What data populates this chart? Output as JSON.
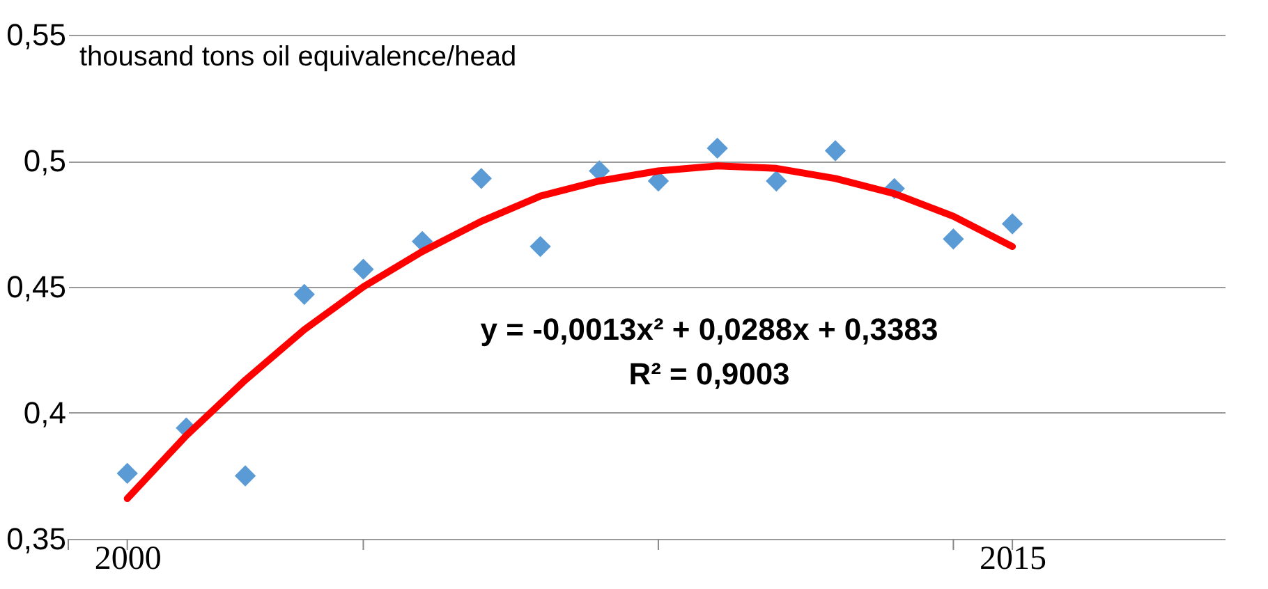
{
  "chart_data": {
    "type": "scatter",
    "ylabel": "thousand tons oil equivalence/head",
    "x": [
      2000,
      2001,
      2002,
      2003,
      2004,
      2005,
      2006,
      2007,
      2008,
      2009,
      2010,
      2011,
      2012,
      2013,
      2014,
      2015
    ],
    "series": [
      {
        "color": "#5b9bd5",
        "marker": "diamond",
        "values": [
          0.376,
          0.394,
          0.375,
          0.447,
          0.457,
          0.468,
          0.493,
          0.466,
          0.496,
          0.492,
          0.505,
          0.492,
          0.504,
          0.489,
          0.469,
          0.475
        ]
      },
      {
        "type": "line",
        "color": "#ff0000",
        "line_style": "solid",
        "x": [
          2000,
          2001,
          2002,
          2003,
          2004,
          2005,
          2006,
          2007,
          2008,
          2009,
          2010,
          2011,
          2012,
          2013,
          2014,
          2015
        ],
        "values": [
          0.366,
          0.391,
          0.413,
          0.433,
          0.45,
          0.464,
          0.476,
          0.486,
          0.492,
          0.496,
          0.498,
          0.497,
          0.493,
          0.487,
          0.478,
          0.466
        ]
      }
    ],
    "xlim": [
      1999,
      2018.6
    ],
    "xticks": [
      {
        "value": 1999,
        "label": null
      },
      2000,
      {
        "value": 2004,
        "label": null
      },
      {
        "value": 2009,
        "label": null
      },
      {
        "value": 2014,
        "label": null
      },
      2015
    ],
    "ylim": [
      0.35,
      0.55
    ],
    "yticks": [
      {
        "value": 0.35,
        "label": "0,35"
      },
      {
        "value": 0.4,
        "label": "0,4"
      },
      {
        "value": 0.45,
        "label": "0,45"
      },
      {
        "value": 0.5,
        "label": "0,5"
      },
      {
        "value": 0.55,
        "label": "0,55"
      }
    ],
    "grid": "y",
    "annotations": [
      "y = -0,0013x² + 0,0288x + 0,3383",
      "R² = 0,9003"
    ]
  }
}
